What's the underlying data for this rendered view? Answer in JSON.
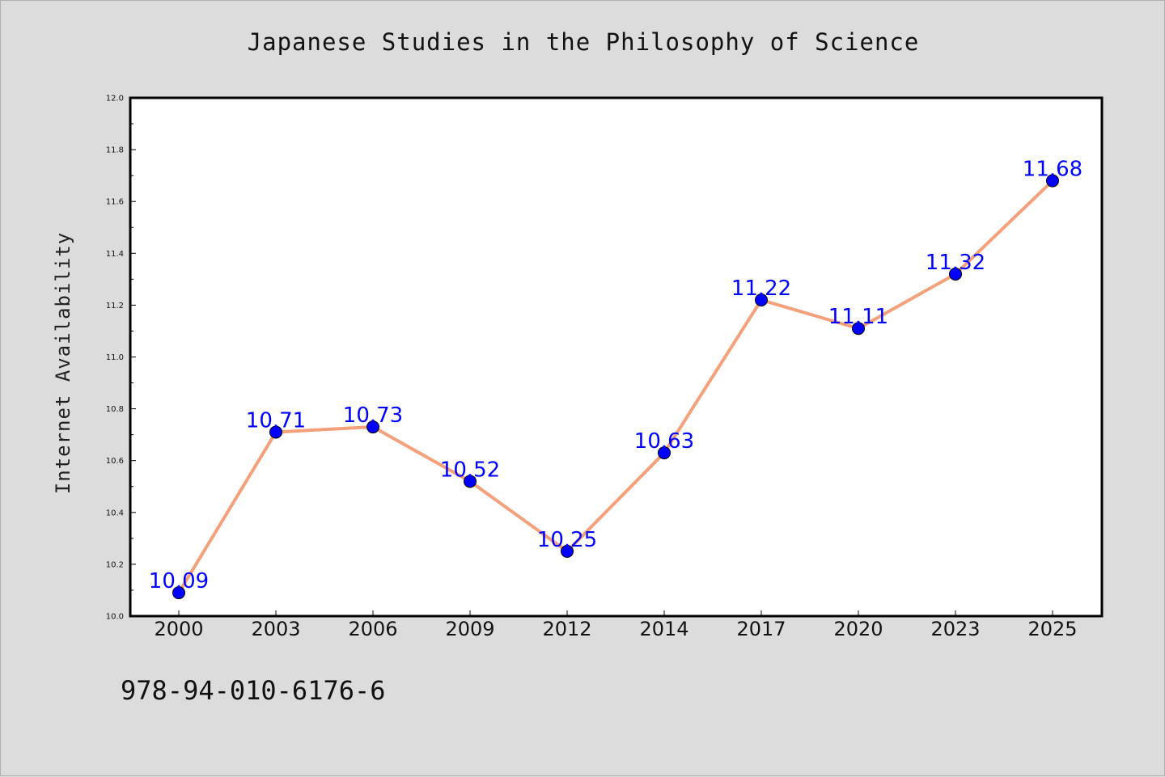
{
  "chart_data": {
    "type": "line",
    "title": "Japanese Studies in the Philosophy of Science",
    "xlabel": "",
    "ylabel": "Internet Availability",
    "categories": [
      "2000",
      "2003",
      "2006",
      "2009",
      "2012",
      "2014",
      "2017",
      "2020",
      "2023",
      "2025"
    ],
    "series": [
      {
        "values": [
          10.09,
          10.71,
          10.73,
          10.52,
          10.25,
          10.63,
          11.22,
          11.11,
          11.32,
          11.68
        ],
        "line_color": "#f4a07a",
        "marker_color": "#0000ff"
      }
    ],
    "data_labels": [
      "10.09",
      "10.71",
      "10.73",
      "10.52",
      "10.25",
      "10.63",
      "11.22",
      "11.11",
      "11.32",
      "11.68"
    ],
    "ylim": [
      10.0,
      12.0
    ],
    "yticks": [
      "10.0",
      "10.2",
      "10.4",
      "10.6",
      "10.8",
      "11.0",
      "11.2",
      "11.4",
      "11.6",
      "11.8",
      "12.0"
    ],
    "grid": false,
    "legend": "none"
  },
  "footer": {
    "code": "978-94-010-6176-6"
  },
  "colors": {
    "background": "#dcdcdc",
    "plot_background": "#ffffff",
    "line": "#f4a07a",
    "marker": "#0000ff",
    "data_label": "#0000ff"
  }
}
